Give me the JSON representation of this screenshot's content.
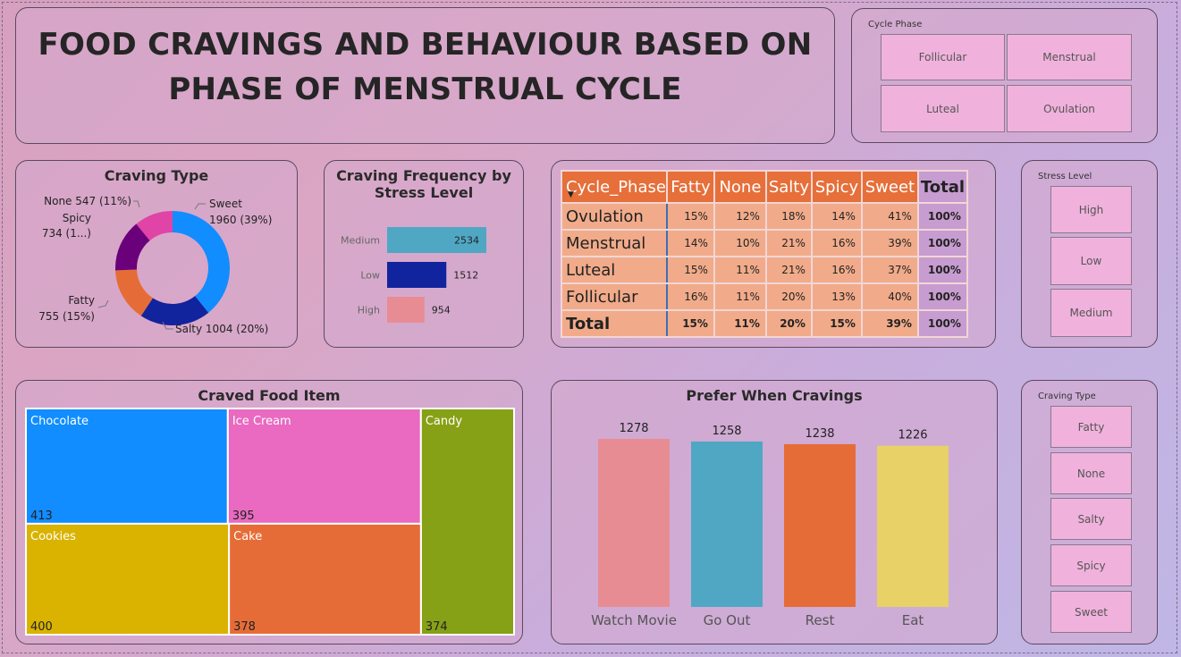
{
  "header": {
    "title_line1": "FOOD CRAVINGS AND BEHAVIOUR BASED ON",
    "title_line2": "PHASE OF MENSTRUAL CYCLE"
  },
  "slicers": {
    "cycle_phase": {
      "title": "Cycle Phase",
      "options": [
        "Follicular",
        "Menstrual",
        "Luteal",
        "Ovulation"
      ]
    },
    "stress_level": {
      "title": "Stress Level",
      "options": [
        "High",
        "Low",
        "Medium"
      ]
    },
    "craving_type": {
      "title": "Craving Type",
      "options": [
        "Fatty",
        "None",
        "Salty",
        "Spicy",
        "Sweet"
      ]
    }
  },
  "colors": {
    "blue": "#118dff",
    "navy": "#12239e",
    "orange": "#e66c37",
    "purple": "#6b007b",
    "pink": "#e044a7",
    "magenta": "#e96ac0",
    "teal": "#4fa7c4",
    "salmon": "#e88c94",
    "olive": "#86a116",
    "gold": "#d9b300",
    "yellow": "#e8d166"
  },
  "chart_data": [
    {
      "id": "craving_type",
      "type": "pie",
      "title": "Craving Type",
      "categories": [
        "Sweet",
        "Salty",
        "Fatty",
        "Spicy",
        "None"
      ],
      "values": [
        1960,
        1004,
        755,
        734,
        547
      ],
      "labels": [
        "Sweet",
        "1960 (39%)",
        "Salty 1004 (20%)",
        "Fatty",
        "755 (15%)",
        "Spicy",
        "734 (1...)",
        "None 547 (11%)"
      ]
    },
    {
      "id": "stress_frequency",
      "type": "bar",
      "title": "Craving Frequency by",
      "title_line2": "Stress Level",
      "categories": [
        "Medium",
        "Low",
        "High"
      ],
      "values": [
        2534,
        1512,
        954
      ],
      "xlim": [
        0,
        2534
      ]
    },
    {
      "id": "phase_matrix",
      "type": "table",
      "columns": [
        "Cycle_Phase",
        "Fatty",
        "None",
        "Salty",
        "Spicy",
        "Sweet",
        "Total"
      ],
      "rows": [
        [
          "Ovulation",
          "15%",
          "12%",
          "18%",
          "14%",
          "41%",
          "100%"
        ],
        [
          "Menstrual",
          "14%",
          "10%",
          "21%",
          "16%",
          "39%",
          "100%"
        ],
        [
          "Luteal",
          "15%",
          "11%",
          "21%",
          "16%",
          "37%",
          "100%"
        ],
        [
          "Follicular",
          "16%",
          "11%",
          "20%",
          "13%",
          "40%",
          "100%"
        ],
        [
          "Total",
          "15%",
          "11%",
          "20%",
          "15%",
          "39%",
          "100%"
        ]
      ]
    },
    {
      "id": "craved_food",
      "type": "treemap",
      "title": "Craved Food Item",
      "categories": [
        "Chocolate",
        "Ice Cream",
        "Candy",
        "Cookies",
        "Cake"
      ],
      "values": [
        413,
        395,
        374,
        400,
        378
      ]
    },
    {
      "id": "prefer_when_cravings",
      "type": "bar",
      "title": "Prefer When Cravings",
      "categories": [
        "Watch Movie",
        "Go Out",
        "Rest",
        "Eat"
      ],
      "values": [
        1278,
        1258,
        1238,
        1226
      ],
      "ylim": [
        0,
        1278
      ]
    }
  ]
}
